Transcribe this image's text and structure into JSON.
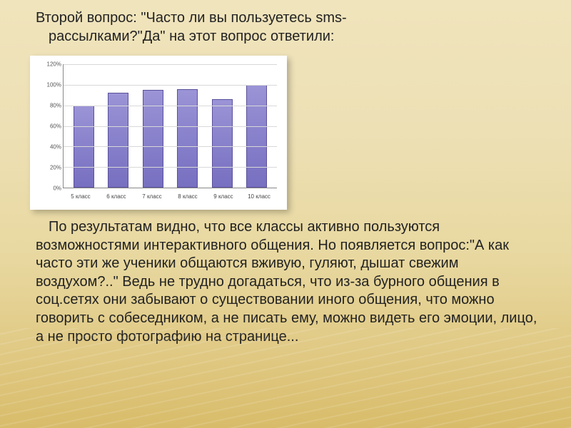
{
  "title_line1": "Второй вопрос: \"Часто ли вы пользуетесь sms-",
  "title_line2": "рассылками?\"Да\" на этот вопрос ответили:",
  "chart": {
    "type": "bar",
    "categories": [
      "5 класс",
      "6 класс",
      "7 класс",
      "8 класс",
      "9 класс",
      "10 класс"
    ],
    "values": [
      80,
      92,
      95,
      96,
      86,
      100
    ],
    "bar_color": "#8881cb",
    "bar_border": "#5a529c",
    "ylim": [
      0,
      120
    ],
    "ytick_step": 20,
    "ytick_suffix": "%",
    "grid_color": "#d8d8d8",
    "background_color": "#ffffff",
    "axis_fontsize": 8,
    "axis_color": "#555"
  },
  "body": "По результатам видно, что все классы активно пользуются возможностями интерактивного общения. Но появляется вопрос:\"А как часто эти же ученики общаются вживую, гуляют, дышат свежим воздухом?..\" Ведь не трудно догадаться, что из-за бурного общения в соц.сетях они забывают о существовании иного общения, что можно говорить с собеседником, а не писать ему, можно видеть его эмоции, лицо, а не просто фотографию на странице..."
}
